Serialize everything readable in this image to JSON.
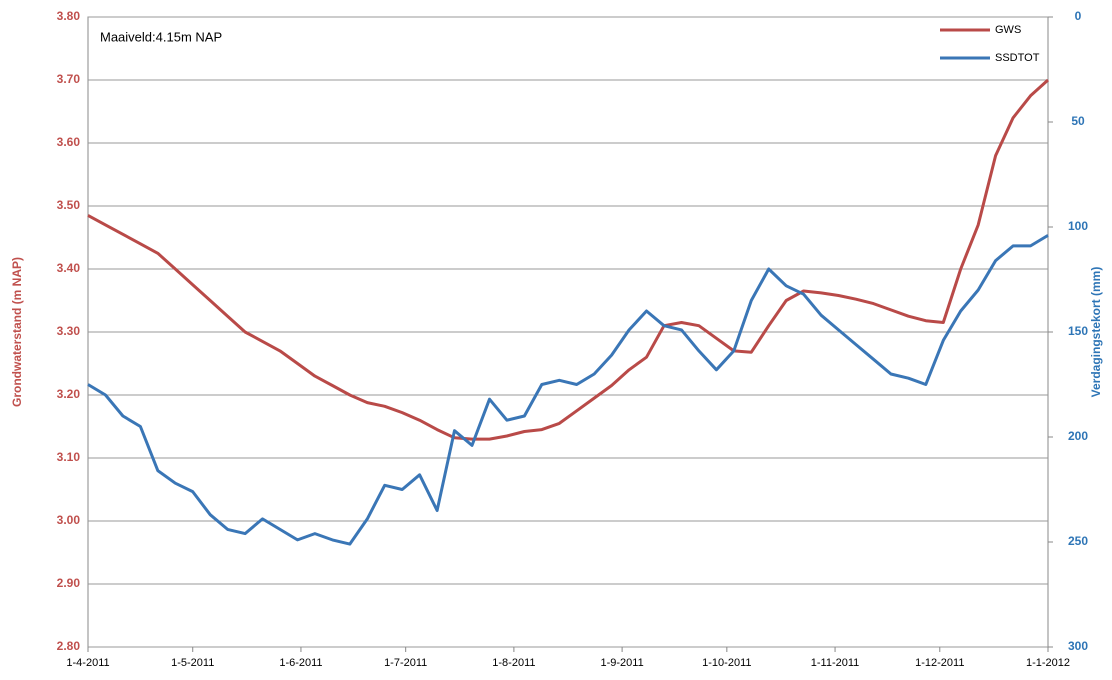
{
  "chart_data": {
    "type": "line",
    "annotation": "Maaiveld:4.15m NAP",
    "ylabel": "Grondwaterstand (m NAP)",
    "y2label": "Verdagingstekort (mm)",
    "grid": true,
    "legend": "top-right",
    "xlim": [
      "1-4-2011",
      "1-1-2012"
    ],
    "xticks": [
      "1-4-2011",
      "1-5-2011",
      "1-6-2011",
      "1-7-2011",
      "1-8-2011",
      "1-9-2011",
      "1-10-2011",
      "1-11-2011",
      "1-12-2011",
      "1-1-2012"
    ],
    "ylim": [
      2.8,
      3.8
    ],
    "yticks": [
      {
        "value": 2.8,
        "label": "2.80"
      },
      {
        "value": 2.9,
        "label": "2.90"
      },
      {
        "value": 3.0,
        "label": "3.00"
      },
      {
        "value": 3.1,
        "label": "3.10"
      },
      {
        "value": 3.2,
        "label": "3.20"
      },
      {
        "value": 3.3,
        "label": "3.30"
      },
      {
        "value": 3.4,
        "label": "3.40"
      },
      {
        "value": 3.5,
        "label": "3.50"
      },
      {
        "value": 3.6,
        "label": "3.60"
      },
      {
        "value": 3.7,
        "label": "3.70"
      },
      {
        "value": 3.8,
        "label": "3.80"
      }
    ],
    "y2lim": [
      300,
      0
    ],
    "y2ticks": [
      0,
      50,
      100,
      150,
      200,
      250,
      300
    ],
    "x": [
      "1-4-2011",
      "6-4-2011",
      "11-4-2011",
      "16-4-2011",
      "21-4-2011",
      "26-4-2011",
      "1-5-2011",
      "6-5-2011",
      "11-5-2011",
      "16-5-2011",
      "21-5-2011",
      "26-5-2011",
      "31-5-2011",
      "5-6-2011",
      "10-6-2011",
      "15-6-2011",
      "20-6-2011",
      "25-6-2011",
      "30-6-2011",
      "5-7-2011",
      "10-7-2011",
      "15-7-2011",
      "20-7-2011",
      "25-7-2011",
      "30-7-2011",
      "4-8-2011",
      "9-8-2011",
      "14-8-2011",
      "19-8-2011",
      "24-8-2011",
      "29-8-2011",
      "3-9-2011",
      "8-9-2011",
      "13-9-2011",
      "18-9-2011",
      "23-9-2011",
      "28-9-2011",
      "3-10-2011",
      "8-10-2011",
      "13-10-2011",
      "18-10-2011",
      "23-10-2011",
      "28-10-2011",
      "2-11-2011",
      "7-11-2011",
      "12-11-2011",
      "17-11-2011",
      "22-11-2011",
      "27-11-2011",
      "2-12-2011",
      "7-12-2011",
      "12-12-2011",
      "17-12-2011",
      "22-12-2011",
      "27-12-2011",
      "1-1-2012"
    ],
    "series": [
      {
        "name": "GWS",
        "color": "#b94a48",
        "axis": "y",
        "values": [
          3.485,
          3.47,
          3.455,
          3.44,
          3.425,
          3.4,
          3.375,
          3.35,
          3.325,
          3.3,
          3.285,
          3.27,
          3.25,
          3.23,
          3.215,
          3.2,
          3.188,
          3.182,
          3.172,
          3.16,
          3.145,
          3.132,
          3.13,
          3.13,
          3.135,
          3.142,
          3.145,
          3.155,
          3.175,
          3.195,
          3.215,
          3.24,
          3.26,
          3.31,
          3.315,
          3.31,
          3.29,
          3.27,
          3.268,
          3.31,
          3.35,
          3.365,
          3.362,
          3.358,
          3.352,
          3.345,
          3.335,
          3.325,
          3.318,
          3.315,
          3.4,
          3.47,
          3.58,
          3.64,
          3.675,
          3.7
        ]
      },
      {
        "name": "SSDTOT",
        "color": "#3a76b6",
        "axis": "y2",
        "values": [
          175,
          180,
          190,
          195,
          216,
          222,
          226,
          237,
          244,
          246,
          239,
          244,
          249,
          246,
          249,
          251,
          239,
          223,
          225,
          218,
          235,
          197,
          204,
          182,
          192,
          190,
          175,
          173,
          175,
          170,
          161,
          149,
          140,
          147,
          149,
          159,
          168,
          159,
          135,
          120,
          128,
          132,
          142,
          149,
          156,
          163,
          170,
          172,
          175,
          154,
          140,
          130,
          116,
          109,
          109,
          104
        ]
      }
    ]
  }
}
